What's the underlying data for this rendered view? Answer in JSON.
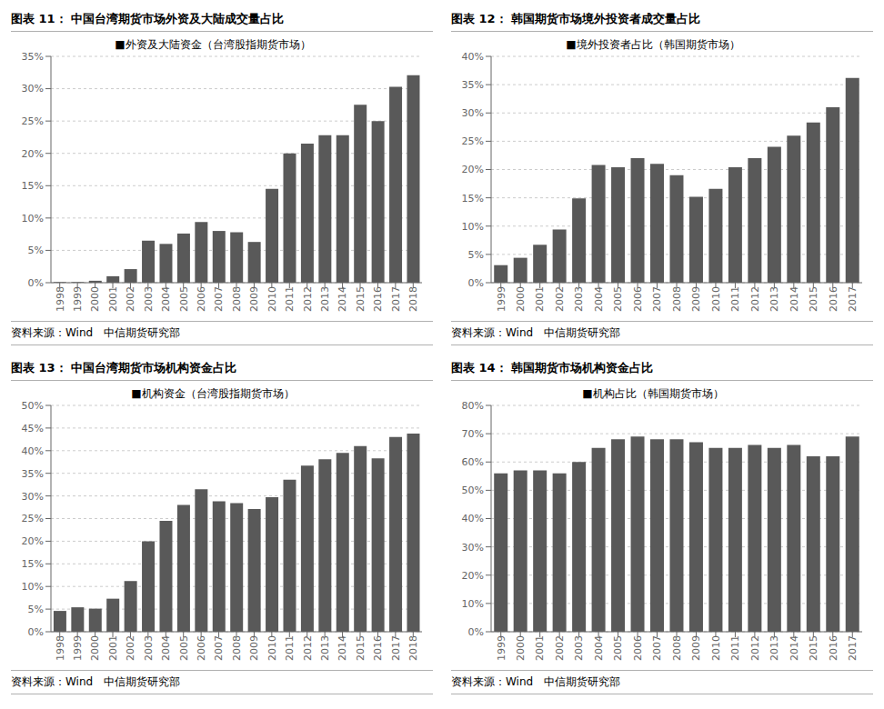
{
  "chart_data": [
    {
      "type": "bar",
      "title": "图表 11：  中国台湾期货市场外资及大陆成交量占比",
      "categories": [
        1998,
        1999,
        2000,
        2001,
        2002,
        2003,
        2004,
        2005,
        2006,
        2007,
        2008,
        2009,
        2010,
        2011,
        2012,
        2013,
        2014,
        2015,
        2016,
        2017,
        2018
      ],
      "series": [
        {
          "name": "■外资及大陆资金（台湾股指期货市场）",
          "color": "#595959",
          "values": [
            0.001,
            0.001,
            0.003,
            0.01,
            0.021,
            0.065,
            0.06,
            0.076,
            0.094,
            0.08,
            0.078,
            0.063,
            0.145,
            0.2,
            0.215,
            0.228,
            0.228,
            0.275,
            0.25,
            0.303,
            0.321
          ]
        }
      ],
      "ylim": [
        0.0,
        0.35
      ],
      "yticks": [
        {
          "value": 0.0,
          "label": "0%"
        },
        {
          "value": 0.05,
          "label": "5%"
        },
        {
          "value": 0.1,
          "label": "10%"
        },
        {
          "value": 0.15,
          "label": "15%"
        },
        {
          "value": 0.2,
          "label": "20%"
        },
        {
          "value": 0.25,
          "label": "25%"
        },
        {
          "value": 0.3,
          "label": "30%"
        },
        {
          "value": 0.35,
          "label": "35%"
        }
      ],
      "grid": true,
      "legend": "top",
      "annotations": [
        "资料来源：Wind   中信期货研究部"
      ]
    },
    {
      "type": "bar",
      "title": "图表 12：  韩国期货市场境外投资者成交量占比",
      "categories": [
        1999,
        2000,
        2001,
        2002,
        2003,
        2004,
        2005,
        2006,
        2007,
        2008,
        2009,
        2010,
        2011,
        2012,
        2013,
        2014,
        2015,
        2016,
        2017
      ],
      "series": [
        {
          "name": "■境外投资者占比（韩国期货市场）",
          "color": "#595959",
          "values": [
            0.031,
            0.044,
            0.067,
            0.094,
            0.149,
            0.208,
            0.204,
            0.22,
            0.21,
            0.19,
            0.152,
            0.166,
            0.204,
            0.22,
            0.24,
            0.26,
            0.283,
            0.31,
            0.362
          ]
        }
      ],
      "ylim": [
        0.0,
        0.4
      ],
      "yticks": [
        {
          "value": 0.0,
          "label": "0%"
        },
        {
          "value": 0.05,
          "label": "5%"
        },
        {
          "value": 0.1,
          "label": "10%"
        },
        {
          "value": 0.15,
          "label": "15%"
        },
        {
          "value": 0.2,
          "label": "20%"
        },
        {
          "value": 0.25,
          "label": "25%"
        },
        {
          "value": 0.3,
          "label": "30%"
        },
        {
          "value": 0.35,
          "label": "35%"
        },
        {
          "value": 0.4,
          "label": "40%"
        }
      ],
      "grid": true,
      "legend": "top",
      "annotations": [
        "资料来源：Wind   中信期货研究部"
      ]
    },
    {
      "type": "bar",
      "title": "图表 13：  中国台湾期货市场机构资金占比",
      "categories": [
        1998,
        1999,
        2000,
        2001,
        2002,
        2003,
        2004,
        2005,
        2006,
        2007,
        2008,
        2009,
        2010,
        2011,
        2012,
        2013,
        2014,
        2015,
        2016,
        2017,
        2018
      ],
      "series": [
        {
          "name": "■机构资金（台湾股指期货市场）",
          "color": "#595959",
          "values": [
            0.046,
            0.054,
            0.051,
            0.073,
            0.112,
            0.2,
            0.245,
            0.28,
            0.315,
            0.288,
            0.284,
            0.271,
            0.297,
            0.336,
            0.367,
            0.381,
            0.395,
            0.41,
            0.383,
            0.43,
            0.438
          ]
        }
      ],
      "ylim": [
        0.0,
        0.5
      ],
      "yticks": [
        {
          "value": 0.0,
          "label": "0%"
        },
        {
          "value": 0.05,
          "label": "5%"
        },
        {
          "value": 0.1,
          "label": "10%"
        },
        {
          "value": 0.15,
          "label": "15%"
        },
        {
          "value": 0.2,
          "label": "20%"
        },
        {
          "value": 0.25,
          "label": "25%"
        },
        {
          "value": 0.3,
          "label": "30%"
        },
        {
          "value": 0.35,
          "label": "35%"
        },
        {
          "value": 0.4,
          "label": "40%"
        },
        {
          "value": 0.45,
          "label": "45%"
        },
        {
          "value": 0.5,
          "label": "50%"
        }
      ],
      "grid": true,
      "legend": "top",
      "annotations": [
        "资料来源：Wind   中信期货研究部"
      ]
    },
    {
      "type": "bar",
      "title": "图表 14：  韩国期货市场机构资金占比",
      "categories": [
        1999,
        2000,
        2001,
        2002,
        2003,
        2004,
        2005,
        2006,
        2007,
        2008,
        2009,
        2010,
        2011,
        2012,
        2013,
        2014,
        2015,
        2016,
        2017
      ],
      "series": [
        {
          "name": "■机构占比（韩国期货市场）",
          "color": "#595959",
          "values": [
            0.56,
            0.57,
            0.57,
            0.56,
            0.6,
            0.65,
            0.68,
            0.69,
            0.68,
            0.68,
            0.67,
            0.65,
            0.65,
            0.66,
            0.65,
            0.66,
            0.62,
            0.62,
            0.69
          ]
        }
      ],
      "ylim": [
        0.0,
        0.8
      ],
      "yticks": [
        {
          "value": 0.0,
          "label": "0%"
        },
        {
          "value": 0.1,
          "label": "10%"
        },
        {
          "value": 0.2,
          "label": "20%"
        },
        {
          "value": 0.3,
          "label": "30%"
        },
        {
          "value": 0.4,
          "label": "40%"
        },
        {
          "value": 0.5,
          "label": "50%"
        },
        {
          "value": 0.6,
          "label": "60%"
        },
        {
          "value": 0.7,
          "label": "70%"
        },
        {
          "value": 0.8,
          "label": "80%"
        }
      ],
      "grid": true,
      "legend": "top",
      "annotations": [
        "资料来源：Wind   中信期货研究部"
      ]
    }
  ]
}
